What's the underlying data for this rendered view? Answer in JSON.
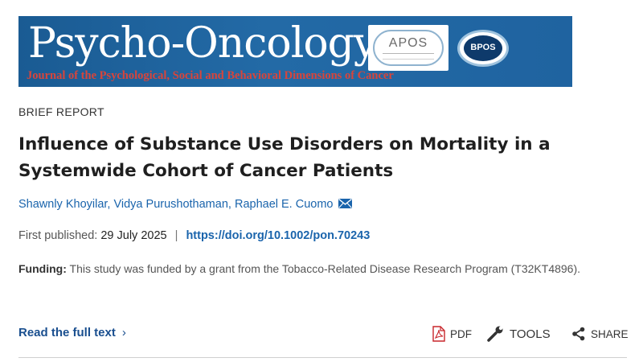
{
  "journal": {
    "title": "Psycho-Oncology",
    "subtitle": "Journal of the Psychological, Social and Behavioral Dimensions of Cancer",
    "logos": [
      "APOS",
      "BPOS"
    ]
  },
  "article": {
    "type": "BRIEF REPORT",
    "title": "Influence of Substance Use Disorders on Mortality in a Systemwide Cohort of Cancer Patients",
    "authors": [
      "Shawnly Khoyilar",
      "Vidya Purushothaman",
      "Raphael E. Cuomo"
    ],
    "published_label": "First published:",
    "published_date": "29 July 2025",
    "separator": "|",
    "doi": "https://doi.org/10.1002/pon.70243",
    "funding_label": "Funding:",
    "funding_text": "This study was funded by a grant from the Tobacco-Related Disease Research Program (T32KT4896)."
  },
  "actions": {
    "read_full_text": "Read the full text",
    "read_chevron": "›",
    "pdf": "PDF",
    "tools": "TOOLS",
    "share": "SHARE"
  },
  "colors": {
    "banner_bg": "#1f63a0",
    "banner_subtitle": "#d8453b",
    "link": "#1a64ac",
    "read_link": "#1a4f8f",
    "pdf_icon": "#c8262b"
  },
  "icons": {
    "author_contact": "envelope-icon",
    "pdf": "pdf-file-icon",
    "tools": "wrench-icon",
    "share": "share-icon",
    "read_more": "chevron-right-icon"
  }
}
